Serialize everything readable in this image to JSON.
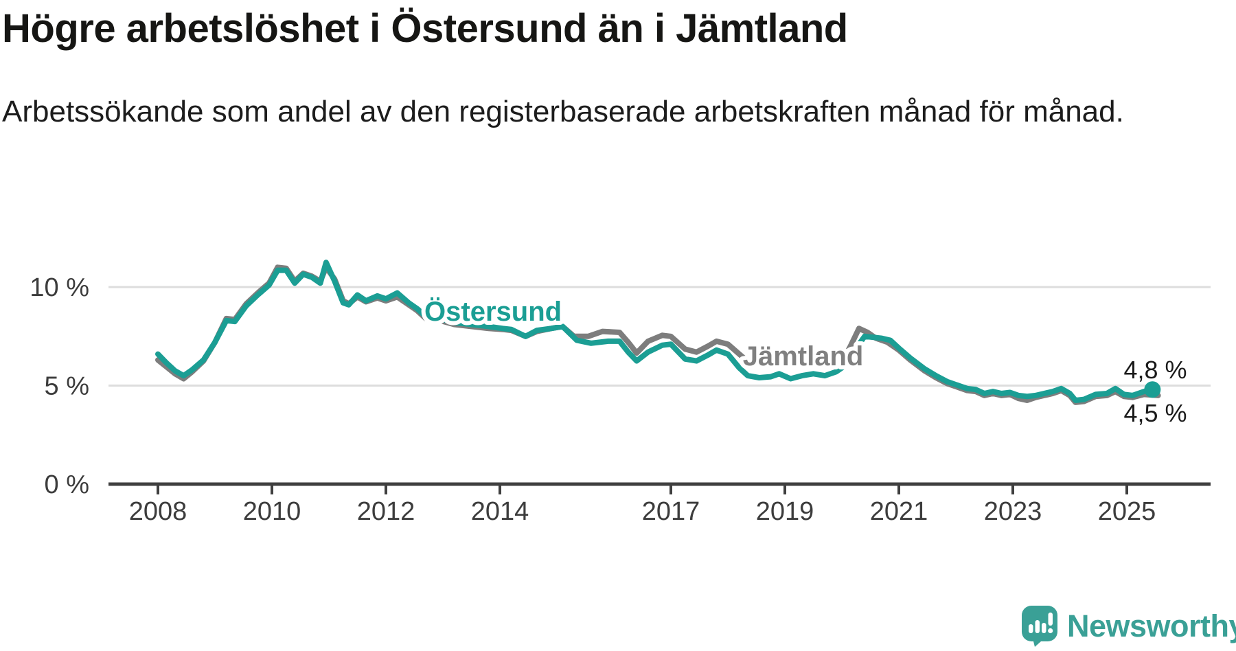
{
  "header": {
    "title": "Högre arbetslöshet i Östersund än i Jämtland",
    "subtitle": "Arbetssökande som andel av den registerbaserade arbetskraften månad för månad."
  },
  "footer": {
    "brand": "Newsworthy"
  },
  "colors": {
    "ostersund": "#1b9e94",
    "jamtland": "#7d7d7d",
    "axis": "#3f3f3f",
    "grid": "#dddddd",
    "brand_teal": "#3aa096"
  },
  "chart_data": {
    "type": "line",
    "title": "Högre arbetslöshet i Östersund än i Jämtland",
    "subtitle": "Arbetssökande som andel av den registerbaserade arbetskraften månad för månad.",
    "xlabel": "",
    "ylabel": "",
    "xlim": [
      2007.1,
      2026.5
    ],
    "ylim": [
      0,
      13.5
    ],
    "grid": "horizontal",
    "legend_position": "inline-labels",
    "y_ticks": [
      {
        "value": 0,
        "label": "0 %"
      },
      {
        "value": 5,
        "label": "5 %"
      },
      {
        "value": 10,
        "label": "10 %"
      }
    ],
    "x_ticks": [
      {
        "value": 2008,
        "label": "2008"
      },
      {
        "value": 2010,
        "label": "2010"
      },
      {
        "value": 2012,
        "label": "2012"
      },
      {
        "value": 2014,
        "label": "2014"
      },
      {
        "value": 2017,
        "label": "2017"
      },
      {
        "value": 2019,
        "label": "2019"
      },
      {
        "value": 2021,
        "label": "2021"
      },
      {
        "value": 2023,
        "label": "2023"
      },
      {
        "value": 2025,
        "label": "2025"
      }
    ],
    "series": [
      {
        "name": "Jämtland",
        "color": "#7d7d7d",
        "end_dot": false,
        "points": [
          [
            2008.0,
            6.3
          ],
          [
            2008.15,
            5.95
          ],
          [
            2008.3,
            5.6
          ],
          [
            2008.45,
            5.35
          ],
          [
            2008.6,
            5.7
          ],
          [
            2008.8,
            6.25
          ],
          [
            2009.0,
            7.2
          ],
          [
            2009.2,
            8.4
          ],
          [
            2009.35,
            8.35
          ],
          [
            2009.55,
            9.15
          ],
          [
            2009.75,
            9.7
          ],
          [
            2009.95,
            10.2
          ],
          [
            2010.1,
            11.0
          ],
          [
            2010.25,
            10.95
          ],
          [
            2010.4,
            10.3
          ],
          [
            2010.55,
            10.7
          ],
          [
            2010.7,
            10.55
          ],
          [
            2010.85,
            10.3
          ],
          [
            2010.95,
            11.0
          ],
          [
            2011.1,
            10.4
          ],
          [
            2011.25,
            9.3
          ],
          [
            2011.35,
            9.15
          ],
          [
            2011.5,
            9.5
          ],
          [
            2011.65,
            9.25
          ],
          [
            2011.85,
            9.45
          ],
          [
            2012.0,
            9.3
          ],
          [
            2012.2,
            9.5
          ],
          [
            2012.4,
            9.1
          ],
          [
            2012.55,
            8.8
          ],
          [
            2012.7,
            8.4
          ],
          [
            2012.95,
            8.3
          ],
          [
            2013.2,
            8.1
          ],
          [
            2013.5,
            8.0
          ],
          [
            2013.8,
            7.9
          ],
          [
            2014.05,
            7.85
          ],
          [
            2014.2,
            7.8
          ],
          [
            2014.45,
            7.5
          ],
          [
            2014.65,
            7.75
          ],
          [
            2014.9,
            7.9
          ],
          [
            2015.1,
            8.0
          ],
          [
            2015.3,
            7.5
          ],
          [
            2015.55,
            7.5
          ],
          [
            2015.8,
            7.75
          ],
          [
            2016.1,
            7.7
          ],
          [
            2016.25,
            7.2
          ],
          [
            2016.4,
            6.65
          ],
          [
            2016.6,
            7.25
          ],
          [
            2016.85,
            7.55
          ],
          [
            2017.0,
            7.5
          ],
          [
            2017.25,
            6.85
          ],
          [
            2017.45,
            6.7
          ],
          [
            2017.65,
            7.0
          ],
          [
            2017.8,
            7.25
          ],
          [
            2018.0,
            7.1
          ],
          [
            2018.2,
            6.6
          ],
          [
            2018.4,
            6.1
          ],
          [
            2018.6,
            6.2
          ],
          [
            2018.8,
            6.25
          ],
          [
            2019.0,
            6.2
          ],
          [
            2019.2,
            6.3
          ],
          [
            2019.4,
            6.25
          ],
          [
            2019.6,
            6.2
          ],
          [
            2019.8,
            6.2
          ],
          [
            2020.0,
            6.2
          ],
          [
            2020.15,
            7.0
          ],
          [
            2020.3,
            7.9
          ],
          [
            2020.45,
            7.7
          ],
          [
            2020.6,
            7.4
          ],
          [
            2020.8,
            7.2
          ],
          [
            2021.0,
            6.8
          ],
          [
            2021.2,
            6.3
          ],
          [
            2021.45,
            5.75
          ],
          [
            2021.65,
            5.4
          ],
          [
            2021.85,
            5.1
          ],
          [
            2022.0,
            4.95
          ],
          [
            2022.2,
            4.75
          ],
          [
            2022.35,
            4.7
          ],
          [
            2022.5,
            4.5
          ],
          [
            2022.65,
            4.6
          ],
          [
            2022.8,
            4.5
          ],
          [
            2022.95,
            4.55
          ],
          [
            2023.1,
            4.35
          ],
          [
            2023.25,
            4.25
          ],
          [
            2023.4,
            4.4
          ],
          [
            2023.55,
            4.5
          ],
          [
            2023.7,
            4.6
          ],
          [
            2023.85,
            4.75
          ],
          [
            2024.0,
            4.5
          ],
          [
            2024.1,
            4.15
          ],
          [
            2024.25,
            4.2
          ],
          [
            2024.45,
            4.45
          ],
          [
            2024.65,
            4.5
          ],
          [
            2024.8,
            4.7
          ],
          [
            2024.95,
            4.45
          ],
          [
            2025.1,
            4.4
          ],
          [
            2025.3,
            4.55
          ],
          [
            2025.55,
            4.5
          ]
        ]
      },
      {
        "name": "Östersund",
        "color": "#1b9e94",
        "end_dot": true,
        "points": [
          [
            2008.0,
            6.6
          ],
          [
            2008.15,
            6.15
          ],
          [
            2008.3,
            5.75
          ],
          [
            2008.45,
            5.5
          ],
          [
            2008.6,
            5.8
          ],
          [
            2008.8,
            6.3
          ],
          [
            2009.0,
            7.2
          ],
          [
            2009.2,
            8.3
          ],
          [
            2009.35,
            8.25
          ],
          [
            2009.55,
            9.05
          ],
          [
            2009.75,
            9.6
          ],
          [
            2009.95,
            10.1
          ],
          [
            2010.1,
            10.85
          ],
          [
            2010.25,
            10.85
          ],
          [
            2010.4,
            10.2
          ],
          [
            2010.55,
            10.65
          ],
          [
            2010.7,
            10.5
          ],
          [
            2010.85,
            10.2
          ],
          [
            2010.95,
            11.25
          ],
          [
            2011.1,
            10.3
          ],
          [
            2011.25,
            9.2
          ],
          [
            2011.35,
            9.1
          ],
          [
            2011.5,
            9.6
          ],
          [
            2011.65,
            9.3
          ],
          [
            2011.85,
            9.55
          ],
          [
            2012.0,
            9.4
          ],
          [
            2012.2,
            9.7
          ],
          [
            2012.4,
            9.2
          ],
          [
            2012.55,
            8.9
          ],
          [
            2012.7,
            8.5
          ],
          [
            2012.95,
            8.4
          ],
          [
            2013.2,
            8.2
          ],
          [
            2013.5,
            8.1
          ],
          [
            2013.8,
            8.0
          ],
          [
            2014.05,
            7.9
          ],
          [
            2014.2,
            7.85
          ],
          [
            2014.45,
            7.5
          ],
          [
            2014.65,
            7.8
          ],
          [
            2014.9,
            7.9
          ],
          [
            2015.1,
            8.0
          ],
          [
            2015.35,
            7.3
          ],
          [
            2015.6,
            7.15
          ],
          [
            2015.9,
            7.25
          ],
          [
            2016.1,
            7.25
          ],
          [
            2016.25,
            6.7
          ],
          [
            2016.4,
            6.25
          ],
          [
            2016.6,
            6.7
          ],
          [
            2016.85,
            7.05
          ],
          [
            2017.0,
            7.1
          ],
          [
            2017.25,
            6.35
          ],
          [
            2017.45,
            6.25
          ],
          [
            2017.65,
            6.55
          ],
          [
            2017.8,
            6.8
          ],
          [
            2018.0,
            6.6
          ],
          [
            2018.2,
            5.9
          ],
          [
            2018.35,
            5.5
          ],
          [
            2018.55,
            5.4
          ],
          [
            2018.75,
            5.45
          ],
          [
            2018.9,
            5.6
          ],
          [
            2019.1,
            5.35
          ],
          [
            2019.3,
            5.5
          ],
          [
            2019.5,
            5.6
          ],
          [
            2019.7,
            5.5
          ],
          [
            2019.9,
            5.7
          ],
          [
            2020.05,
            6.0
          ],
          [
            2020.2,
            6.7
          ],
          [
            2020.4,
            7.5
          ],
          [
            2020.55,
            7.45
          ],
          [
            2020.7,
            7.4
          ],
          [
            2020.85,
            7.3
          ],
          [
            2021.0,
            6.9
          ],
          [
            2021.2,
            6.4
          ],
          [
            2021.45,
            5.85
          ],
          [
            2021.65,
            5.5
          ],
          [
            2021.85,
            5.2
          ],
          [
            2022.0,
            5.05
          ],
          [
            2022.2,
            4.85
          ],
          [
            2022.35,
            4.8
          ],
          [
            2022.5,
            4.6
          ],
          [
            2022.65,
            4.7
          ],
          [
            2022.8,
            4.6
          ],
          [
            2022.95,
            4.65
          ],
          [
            2023.1,
            4.5
          ],
          [
            2023.25,
            4.45
          ],
          [
            2023.4,
            4.5
          ],
          [
            2023.55,
            4.6
          ],
          [
            2023.7,
            4.7
          ],
          [
            2023.85,
            4.85
          ],
          [
            2024.0,
            4.6
          ],
          [
            2024.1,
            4.25
          ],
          [
            2024.25,
            4.3
          ],
          [
            2024.45,
            4.55
          ],
          [
            2024.65,
            4.6
          ],
          [
            2024.8,
            4.85
          ],
          [
            2024.95,
            4.55
          ],
          [
            2025.1,
            4.5
          ],
          [
            2025.3,
            4.7
          ],
          [
            2025.45,
            4.8
          ]
        ]
      }
    ],
    "series_annotations": [
      {
        "text": "Östersund",
        "x": 2013.88,
        "y": 8.78,
        "color": "#1b9e94"
      },
      {
        "text": "Jämtland",
        "x": 2019.32,
        "y": 6.52,
        "color": "#808080"
      }
    ],
    "value_annotations": [
      {
        "text": "4,8 %",
        "x": 2025.5,
        "y": 5.82
      },
      {
        "text": "4,5 %",
        "x": 2025.5,
        "y": 3.62
      }
    ]
  }
}
